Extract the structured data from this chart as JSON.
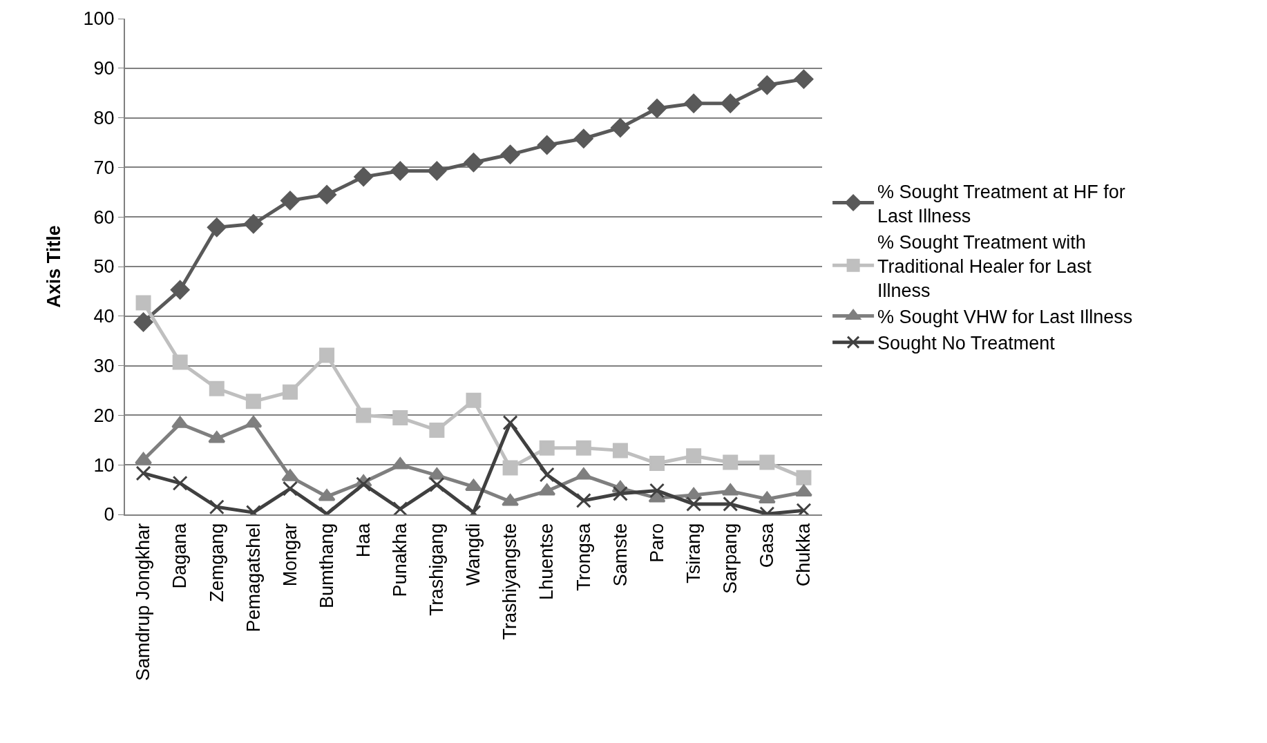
{
  "chart_data": {
    "type": "line",
    "ylabel": "Axis Title",
    "categories": [
      "Samdrup Jongkhar",
      "Dagana",
      "Zemgang",
      "Pemagatshel",
      "Mongar",
      "Bumthang",
      "Haa",
      "Punakha",
      "Trashigang",
      "Wangdi",
      "Trashiyangste",
      "Lhuentse",
      "Trongsa",
      "Samste",
      "Paro",
      "Tsirang",
      "Sarpang",
      "Gasa",
      "Chukka"
    ],
    "series": [
      {
        "name": "% Sought Treatment at HF for Last Illness",
        "color": "#595959",
        "marker": "diamond",
        "values": [
          38.8,
          45.3,
          57.9,
          58.6,
          63.3,
          64.5,
          68.1,
          69.3,
          69.3,
          71.0,
          72.6,
          74.5,
          75.8,
          78.0,
          81.9,
          82.9,
          82.9,
          86.6,
          87.8
        ]
      },
      {
        "name": "% Sought Treatment with Traditional Healer for Last Illness",
        "color": "#bfbfbf",
        "marker": "square",
        "values": [
          42.7,
          30.7,
          25.4,
          22.8,
          24.7,
          32.1,
          20.0,
          19.5,
          17.0,
          23.0,
          9.4,
          13.4,
          13.4,
          12.9,
          10.3,
          11.8,
          10.5,
          10.5,
          7.4
        ]
      },
      {
        "name": "% Sought VHW for Last Illness",
        "color": "#7f7f7f",
        "marker": "triangle",
        "values": [
          11.0,
          18.3,
          15.3,
          18.4,
          7.6,
          3.6,
          6.5,
          10.0,
          7.9,
          5.6,
          2.6,
          4.7,
          7.9,
          5.3,
          3.3,
          3.9,
          4.7,
          3.1,
          4.5
        ]
      },
      {
        "name": "Sought No Treatment",
        "color": "#404040",
        "marker": "cross",
        "values": [
          8.3,
          6.3,
          1.5,
          0.4,
          5.2,
          0.1,
          6.1,
          1.1,
          6.0,
          0.4,
          18.5,
          8.0,
          2.8,
          4.2,
          4.8,
          2.1,
          2.1,
          0.1,
          0.8
        ]
      }
    ],
    "ylim": [
      0,
      100
    ],
    "yticks": [
      0,
      10,
      20,
      30,
      40,
      50,
      60,
      70,
      80,
      90,
      100
    ],
    "grid": "y",
    "legend": "right",
    "line_style": "solid"
  }
}
